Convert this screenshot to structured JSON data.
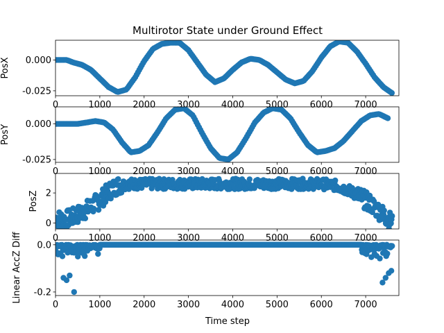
{
  "chart_data": {
    "type": "scatter",
    "title": "Multirotor State under Ground Effect",
    "xlabel": "Time step",
    "marker_color": "#1f77b4",
    "grid": false,
    "subplots": [
      {
        "ylabel": "PosX",
        "xlim": [
          0,
          7750
        ],
        "ylim": [
          -0.029,
          0.016
        ],
        "xticks": [
          0,
          1000,
          2000,
          3000,
          4000,
          5000,
          6000,
          7000
        ],
        "xtick_labels": [
          "0",
          "1000",
          "2000",
          "3000",
          "4000",
          "5000",
          "6000",
          "7000"
        ],
        "yticks": [
          0.0,
          -0.025
        ],
        "ytick_labels": [
          "0.000",
          "-0.025"
        ],
        "x": [
          0,
          250,
          400,
          600,
          800,
          1000,
          1200,
          1400,
          1600,
          1800,
          2000,
          2200,
          2400,
          2600,
          2800,
          3000,
          3200,
          3400,
          3600,
          3800,
          4000,
          4200,
          4400,
          4600,
          4800,
          5000,
          5200,
          5400,
          5600,
          5800,
          6000,
          6200,
          6400,
          6600,
          6800,
          7000,
          7200,
          7400,
          7600
        ],
        "values": [
          0.0,
          0.0,
          -0.002,
          -0.004,
          -0.008,
          -0.015,
          -0.022,
          -0.026,
          -0.024,
          -0.014,
          -0.001,
          0.009,
          0.013,
          0.014,
          0.014,
          0.008,
          -0.002,
          -0.012,
          -0.018,
          -0.015,
          -0.008,
          -0.002,
          0.001,
          0.0,
          -0.004,
          -0.01,
          -0.016,
          -0.019,
          -0.017,
          -0.009,
          0.002,
          0.011,
          0.015,
          0.014,
          0.007,
          -0.003,
          -0.014,
          -0.022,
          -0.027
        ]
      },
      {
        "ylabel": "PosY",
        "xlim": [
          0,
          7750
        ],
        "ylim": [
          -0.027,
          0.012
        ],
        "xticks": [
          0,
          1000,
          2000,
          3000,
          4000,
          5000,
          6000,
          7000
        ],
        "xtick_labels": [
          "0",
          "1000",
          "2000",
          "3000",
          "4000",
          "5000",
          "6000",
          "7000"
        ],
        "yticks": [
          0.0,
          -0.025
        ],
        "ytick_labels": [
          "0.000",
          "-0.025"
        ],
        "x": [
          0,
          500,
          700,
          900,
          1100,
          1300,
          1500,
          1700,
          1900,
          2100,
          2300,
          2500,
          2700,
          2900,
          3100,
          3300,
          3500,
          3700,
          3900,
          4100,
          4300,
          4500,
          4700,
          4900,
          5100,
          5300,
          5500,
          5700,
          5900,
          6100,
          6300,
          6500,
          6700,
          6900,
          7100,
          7300,
          7500
        ],
        "values": [
          0.0,
          0.0,
          0.001,
          0.002,
          0.001,
          -0.004,
          -0.013,
          -0.02,
          -0.019,
          -0.015,
          -0.006,
          0.004,
          0.01,
          0.011,
          0.006,
          -0.006,
          -0.017,
          -0.024,
          -0.025,
          -0.02,
          -0.01,
          0.001,
          0.008,
          0.011,
          0.01,
          0.004,
          -0.006,
          -0.015,
          -0.02,
          -0.019,
          -0.017,
          -0.012,
          -0.005,
          0.002,
          0.006,
          0.007,
          0.004
        ]
      },
      {
        "ylabel": "PosZ",
        "xlim": [
          0,
          7750
        ],
        "ylim": [
          -0.4,
          3.3
        ],
        "xticks": [
          0,
          1000,
          2000,
          3000,
          4000,
          5000,
          6000,
          7000
        ],
        "xtick_labels": [
          "0",
          "1000",
          "2000",
          "3000",
          "4000",
          "5000",
          "6000",
          "7000"
        ],
        "yticks": [
          0,
          2
        ],
        "ytick_labels": [
          "0",
          "2"
        ],
        "x": [
          0,
          200,
          400,
          600,
          800,
          1000,
          1200,
          1400,
          1600,
          2000,
          2500,
          3000,
          3500,
          4000,
          4500,
          5000,
          5500,
          6000,
          6300,
          6600,
          6900,
          7100,
          7300,
          7500,
          7600
        ],
        "values": [
          0.3,
          0.2,
          0.4,
          0.7,
          1.1,
          1.5,
          2.1,
          2.5,
          2.6,
          2.6,
          2.6,
          2.6,
          2.6,
          2.6,
          2.6,
          2.6,
          2.6,
          2.6,
          2.5,
          2.2,
          1.7,
          1.3,
          0.8,
          0.3,
          0.0
        ]
      },
      {
        "ylabel": "Linear AccZ Diff",
        "xlim": [
          0,
          7750
        ],
        "ylim": [
          -0.215,
          0.02
        ],
        "xticks": [
          0,
          1000,
          2000,
          3000,
          4000,
          5000,
          6000,
          7000
        ],
        "xtick_labels": [
          "0",
          "1000",
          "2000",
          "3000",
          "4000",
          "5000",
          "6000",
          "7000"
        ],
        "yticks": [
          0.0,
          -0.2
        ],
        "ytick_labels": [
          "0.0",
          "-0.2"
        ],
        "x": [
          0,
          6900,
          7600
        ],
        "values": [
          0.0,
          0.0,
          0.0
        ]
      }
    ]
  }
}
